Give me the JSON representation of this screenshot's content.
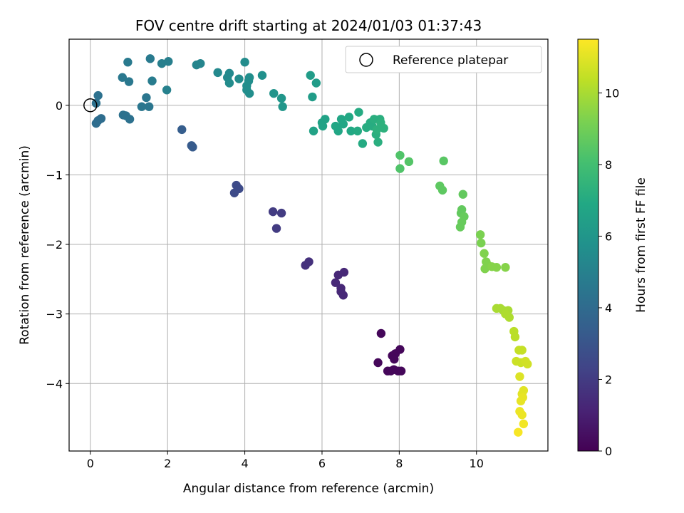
{
  "chart_data": {
    "type": "scatter",
    "title": "FOV centre drift starting at 2024/01/03 01:37:43",
    "xlabel": "Angular distance from reference (arcmin)",
    "ylabel": "Rotation from reference (arcmin)",
    "xlim": [
      -0.55,
      11.85
    ],
    "ylim": [
      -4.97,
      0.95
    ],
    "xticks": [
      0,
      2,
      4,
      6,
      8,
      10
    ],
    "yticks": [
      0,
      -1,
      -2,
      -3,
      -4
    ],
    "grid": true,
    "legend": {
      "position": "top-right",
      "entries": [
        "Reference platepar"
      ]
    },
    "reference_point": {
      "x": 0,
      "y": 0
    },
    "colorbar": {
      "label": "Hours from first FF file",
      "range": [
        0,
        11.5
      ],
      "ticks": [
        0,
        2,
        4,
        6,
        8,
        10
      ],
      "colormap": "viridis"
    },
    "points": [
      {
        "x": 7.53,
        "y": -3.28,
        "t": 0.2
      },
      {
        "x": 7.45,
        "y": -3.7,
        "t": 0.2
      },
      {
        "x": 7.7,
        "y": -3.82,
        "t": 0.2
      },
      {
        "x": 7.82,
        "y": -3.6,
        "t": 0.2
      },
      {
        "x": 7.9,
        "y": -3.57,
        "t": 0.2
      },
      {
        "x": 7.87,
        "y": -3.65,
        "t": 0.2
      },
      {
        "x": 7.86,
        "y": -3.8,
        "t": 0.2
      },
      {
        "x": 7.97,
        "y": -3.82,
        "t": 0.2
      },
      {
        "x": 8.05,
        "y": -3.82,
        "t": 0.2
      },
      {
        "x": 8.02,
        "y": -3.51,
        "t": 0.2
      },
      {
        "x": 7.78,
        "y": -3.82,
        "t": 0.2
      },
      {
        "x": 6.35,
        "y": -2.55,
        "t": 1.3
      },
      {
        "x": 6.42,
        "y": -2.44,
        "t": 1.3
      },
      {
        "x": 6.57,
        "y": -2.4,
        "t": 1.3
      },
      {
        "x": 6.49,
        "y": -2.63,
        "t": 1.3
      },
      {
        "x": 6.49,
        "y": -2.68,
        "t": 1.3
      },
      {
        "x": 6.55,
        "y": -2.73,
        "t": 1.3
      },
      {
        "x": 5.57,
        "y": -2.3,
        "t": 1.6
      },
      {
        "x": 5.66,
        "y": -2.25,
        "t": 1.6
      },
      {
        "x": 4.73,
        "y": -1.53,
        "t": 2.0
      },
      {
        "x": 4.95,
        "y": -1.55,
        "t": 2.0
      },
      {
        "x": 4.82,
        "y": -1.77,
        "t": 2.0
      },
      {
        "x": 3.78,
        "y": -1.15,
        "t": 2.6
      },
      {
        "x": 3.85,
        "y": -1.2,
        "t": 2.6
      },
      {
        "x": 3.73,
        "y": -1.26,
        "t": 2.6
      },
      {
        "x": 2.65,
        "y": -0.6,
        "t": 3.3
      },
      {
        "x": 2.62,
        "y": -0.58,
        "t": 3.3
      },
      {
        "x": 2.37,
        "y": -0.35,
        "t": 3.4
      },
      {
        "x": 0.15,
        "y": -0.26,
        "t": 4.1
      },
      {
        "x": 0.2,
        "y": -0.22,
        "t": 4.1
      },
      {
        "x": 0.28,
        "y": -0.19,
        "t": 4.1
      },
      {
        "x": 0.15,
        "y": 0.03,
        "t": 4.3
      },
      {
        "x": 0.2,
        "y": 0.14,
        "t": 4.3
      },
      {
        "x": 0.85,
        "y": -0.14,
        "t": 4.3
      },
      {
        "x": 0.92,
        "y": -0.15,
        "t": 4.3
      },
      {
        "x": 1.02,
        "y": -0.2,
        "t": 4.3
      },
      {
        "x": 1.33,
        "y": -0.02,
        "t": 4.5
      },
      {
        "x": 1.52,
        "y": -0.02,
        "t": 4.5
      },
      {
        "x": 1.45,
        "y": 0.11,
        "t": 4.5
      },
      {
        "x": 0.83,
        "y": 0.4,
        "t": 4.6
      },
      {
        "x": 1.0,
        "y": 0.34,
        "t": 4.6
      },
      {
        "x": 0.97,
        "y": 0.62,
        "t": 4.7
      },
      {
        "x": 1.55,
        "y": 0.67,
        "t": 4.7
      },
      {
        "x": 1.6,
        "y": 0.35,
        "t": 4.8
      },
      {
        "x": 1.85,
        "y": 0.6,
        "t": 4.9
      },
      {
        "x": 2.02,
        "y": 0.63,
        "t": 4.9
      },
      {
        "x": 1.98,
        "y": 0.22,
        "t": 5.0
      },
      {
        "x": 2.75,
        "y": 0.58,
        "t": 5.2
      },
      {
        "x": 2.85,
        "y": 0.6,
        "t": 5.2
      },
      {
        "x": 3.3,
        "y": 0.47,
        "t": 5.4
      },
      {
        "x": 3.55,
        "y": 0.4,
        "t": 5.4
      },
      {
        "x": 3.6,
        "y": 0.46,
        "t": 5.4
      },
      {
        "x": 3.6,
        "y": 0.32,
        "t": 5.5
      },
      {
        "x": 3.85,
        "y": 0.38,
        "t": 5.5
      },
      {
        "x": 4.0,
        "y": 0.62,
        "t": 5.5
      },
      {
        "x": 4.05,
        "y": 0.28,
        "t": 5.6
      },
      {
        "x": 4.12,
        "y": 0.4,
        "t": 5.6
      },
      {
        "x": 4.1,
        "y": 0.35,
        "t": 5.6
      },
      {
        "x": 4.05,
        "y": 0.22,
        "t": 5.6
      },
      {
        "x": 4.12,
        "y": 0.17,
        "t": 5.6
      },
      {
        "x": 4.45,
        "y": 0.43,
        "t": 5.7
      },
      {
        "x": 4.75,
        "y": 0.17,
        "t": 5.9
      },
      {
        "x": 4.95,
        "y": 0.1,
        "t": 6.0
      },
      {
        "x": 4.98,
        "y": -0.02,
        "t": 6.0
      },
      {
        "x": 5.7,
        "y": 0.43,
        "t": 6.3
      },
      {
        "x": 5.75,
        "y": 0.12,
        "t": 6.3
      },
      {
        "x": 5.85,
        "y": 0.32,
        "t": 6.3
      },
      {
        "x": 5.78,
        "y": -0.37,
        "t": 6.6
      },
      {
        "x": 6.0,
        "y": -0.25,
        "t": 6.6
      },
      {
        "x": 6.08,
        "y": -0.2,
        "t": 6.6
      },
      {
        "x": 6.02,
        "y": -0.3,
        "t": 6.6
      },
      {
        "x": 6.35,
        "y": -0.3,
        "t": 6.8
      },
      {
        "x": 6.42,
        "y": -0.37,
        "t": 6.8
      },
      {
        "x": 6.5,
        "y": -0.2,
        "t": 6.8
      },
      {
        "x": 6.55,
        "y": -0.27,
        "t": 6.8
      },
      {
        "x": 6.7,
        "y": -0.17,
        "t": 6.9
      },
      {
        "x": 6.75,
        "y": -0.37,
        "t": 6.9
      },
      {
        "x": 6.95,
        "y": -0.1,
        "t": 7.0
      },
      {
        "x": 6.92,
        "y": -0.37,
        "t": 7.0
      },
      {
        "x": 7.05,
        "y": -0.55,
        "t": 7.0
      },
      {
        "x": 7.15,
        "y": -0.32,
        "t": 7.1
      },
      {
        "x": 7.25,
        "y": -0.25,
        "t": 7.1
      },
      {
        "x": 7.3,
        "y": -0.3,
        "t": 7.1
      },
      {
        "x": 7.35,
        "y": -0.2,
        "t": 7.2
      },
      {
        "x": 7.4,
        "y": -0.42,
        "t": 7.2
      },
      {
        "x": 7.45,
        "y": -0.53,
        "t": 7.2
      },
      {
        "x": 7.5,
        "y": -0.2,
        "t": 7.2
      },
      {
        "x": 7.52,
        "y": -0.25,
        "t": 7.3
      },
      {
        "x": 7.6,
        "y": -0.33,
        "t": 7.3
      },
      {
        "x": 7.42,
        "y": -0.35,
        "t": 7.3
      },
      {
        "x": 8.02,
        "y": -0.72,
        "t": 8.3
      },
      {
        "x": 8.02,
        "y": -0.91,
        "t": 8.3
      },
      {
        "x": 8.25,
        "y": -0.81,
        "t": 8.4
      },
      {
        "x": 9.15,
        "y": -0.8,
        "t": 8.5
      },
      {
        "x": 9.05,
        "y": -1.16,
        "t": 8.6
      },
      {
        "x": 9.12,
        "y": -1.22,
        "t": 8.6
      },
      {
        "x": 9.65,
        "y": -1.28,
        "t": 8.7
      },
      {
        "x": 9.62,
        "y": -1.5,
        "t": 8.7
      },
      {
        "x": 9.6,
        "y": -1.55,
        "t": 8.7
      },
      {
        "x": 9.68,
        "y": -1.6,
        "t": 8.8
      },
      {
        "x": 9.62,
        "y": -1.68,
        "t": 8.8
      },
      {
        "x": 9.58,
        "y": -1.75,
        "t": 8.8
      },
      {
        "x": 10.1,
        "y": -1.86,
        "t": 9.2
      },
      {
        "x": 10.12,
        "y": -1.98,
        "t": 9.2
      },
      {
        "x": 10.2,
        "y": -2.13,
        "t": 9.3
      },
      {
        "x": 10.25,
        "y": -2.25,
        "t": 9.3
      },
      {
        "x": 10.3,
        "y": -2.3,
        "t": 9.3
      },
      {
        "x": 10.22,
        "y": -2.35,
        "t": 9.3
      },
      {
        "x": 10.4,
        "y": -2.32,
        "t": 9.4
      },
      {
        "x": 10.52,
        "y": -2.33,
        "t": 9.4
      },
      {
        "x": 10.75,
        "y": -2.33,
        "t": 9.4
      },
      {
        "x": 10.52,
        "y": -2.92,
        "t": 10.0
      },
      {
        "x": 10.62,
        "y": -2.92,
        "t": 10.0
      },
      {
        "x": 10.7,
        "y": -2.95,
        "t": 10.0
      },
      {
        "x": 10.82,
        "y": -2.95,
        "t": 10.0
      },
      {
        "x": 10.75,
        "y": -3.0,
        "t": 10.1
      },
      {
        "x": 10.85,
        "y": -3.05,
        "t": 10.1
      },
      {
        "x": 10.97,
        "y": -3.25,
        "t": 10.3
      },
      {
        "x": 11.0,
        "y": -3.33,
        "t": 10.3
      },
      {
        "x": 11.1,
        "y": -3.52,
        "t": 10.5
      },
      {
        "x": 11.18,
        "y": -3.52,
        "t": 10.5
      },
      {
        "x": 11.03,
        "y": -3.68,
        "t": 10.6
      },
      {
        "x": 11.15,
        "y": -3.7,
        "t": 10.6
      },
      {
        "x": 11.27,
        "y": -3.68,
        "t": 10.7
      },
      {
        "x": 11.32,
        "y": -3.72,
        "t": 10.7
      },
      {
        "x": 11.12,
        "y": -3.9,
        "t": 10.9
      },
      {
        "x": 11.22,
        "y": -4.1,
        "t": 11.0
      },
      {
        "x": 11.18,
        "y": -4.15,
        "t": 11.0
      },
      {
        "x": 11.2,
        "y": -4.2,
        "t": 11.1
      },
      {
        "x": 11.15,
        "y": -4.25,
        "t": 11.1
      },
      {
        "x": 11.12,
        "y": -4.4,
        "t": 11.2
      },
      {
        "x": 11.18,
        "y": -4.45,
        "t": 11.2
      },
      {
        "x": 11.22,
        "y": -4.58,
        "t": 11.3
      },
      {
        "x": 11.08,
        "y": -4.7,
        "t": 11.4
      }
    ]
  }
}
